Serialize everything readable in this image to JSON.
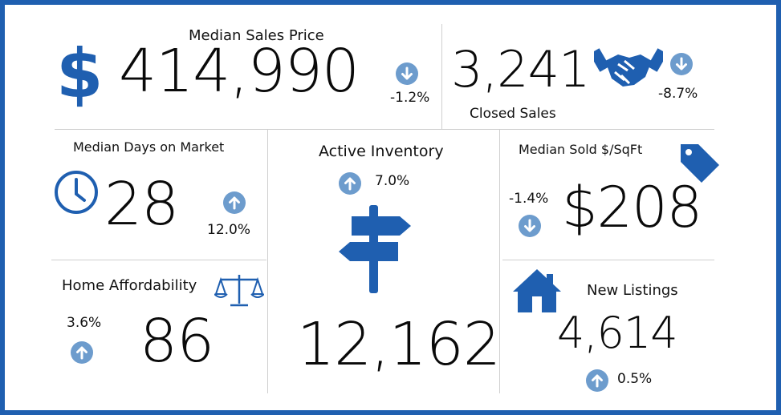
{
  "colors": {
    "brand": "#1f5fb0",
    "arrow_badge": "#6d9ccd"
  },
  "median_sales_price": {
    "label": "Median Sales Price",
    "currency_symbol": "$",
    "value": "414,990",
    "change": "-1.2%",
    "direction": "down"
  },
  "closed_sales": {
    "label": "Closed Sales",
    "value": "3,241",
    "change": "-8.7%",
    "direction": "down",
    "icon": "handshake-icon"
  },
  "median_days_on_market": {
    "label": "Median Days on Market",
    "value": "28",
    "change": "12.0%",
    "direction": "up",
    "icon": "clock-icon"
  },
  "active_inventory": {
    "label": "Active Inventory",
    "value": "12,162",
    "change": "7.0%",
    "direction": "up",
    "icon": "signpost-icon"
  },
  "median_sold_per_sqft": {
    "label": "Median Sold $/SqFt",
    "value": "$208",
    "change": "-1.4%",
    "direction": "down",
    "icon": "price-tag-icon"
  },
  "home_affordability": {
    "label": "Home Affordability",
    "value": "86",
    "change": "3.6%",
    "direction": "up",
    "icon": "scales-icon"
  },
  "new_listings": {
    "label": "New Listings",
    "value": "4,614",
    "change": "0.5%",
    "direction": "up",
    "icon": "house-icon"
  }
}
